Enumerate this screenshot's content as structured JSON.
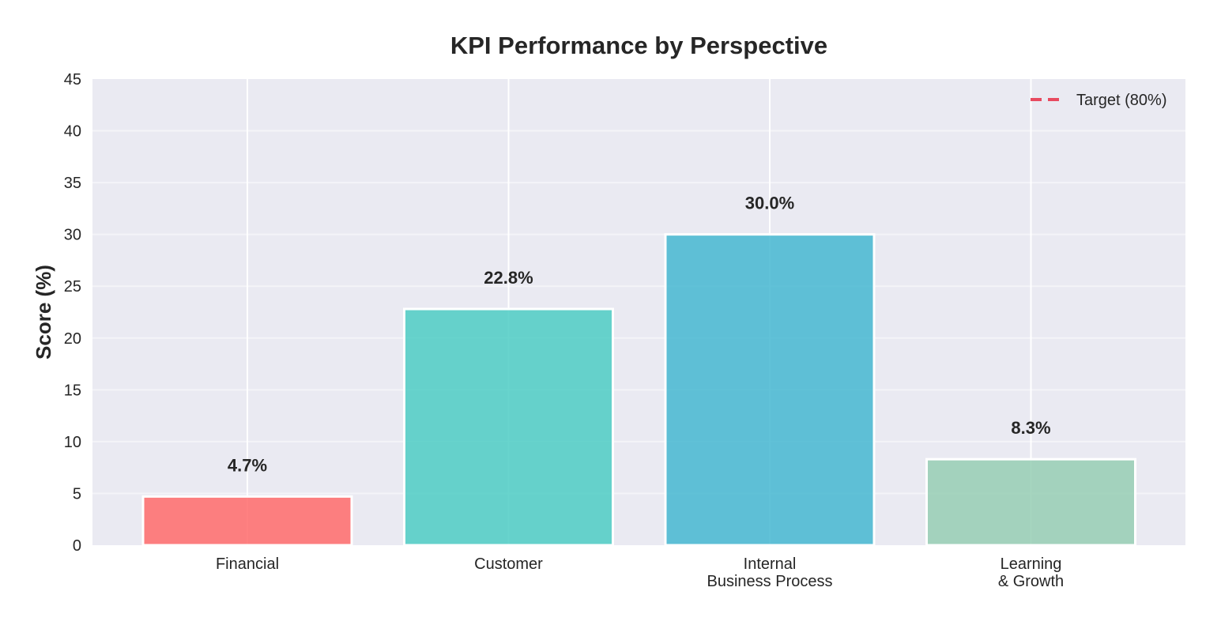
{
  "chart_data": {
    "type": "bar",
    "title": "KPI Performance by Perspective",
    "xlabel": "",
    "ylabel": "Score (%)",
    "ylim": [
      0,
      45
    ],
    "yticks": [
      0,
      5,
      10,
      15,
      20,
      25,
      30,
      35,
      40,
      45
    ],
    "ytick_labels": [
      "0",
      "5",
      "10",
      "15",
      "20",
      "25",
      "30",
      "35",
      "40",
      "45"
    ],
    "categories": [
      [
        "Financial"
      ],
      [
        "Customer"
      ],
      [
        "Internal",
        "Business Process"
      ],
      [
        "Learning",
        "& Growth"
      ]
    ],
    "values": [
      4.7,
      22.8,
      30.0,
      8.3
    ],
    "value_labels": [
      "4.7%",
      "22.8%",
      "30.0%",
      "8.3%"
    ],
    "colors": [
      "#ff6b6b",
      "#4ecdc4",
      "#45b7d1",
      "#96ceb4"
    ],
    "grid": true,
    "legend": {
      "position": "top-right",
      "entries": [
        {
          "label": "Target (80%)",
          "style": "dashed",
          "color": "#e84a5f",
          "value": 80
        }
      ]
    }
  }
}
